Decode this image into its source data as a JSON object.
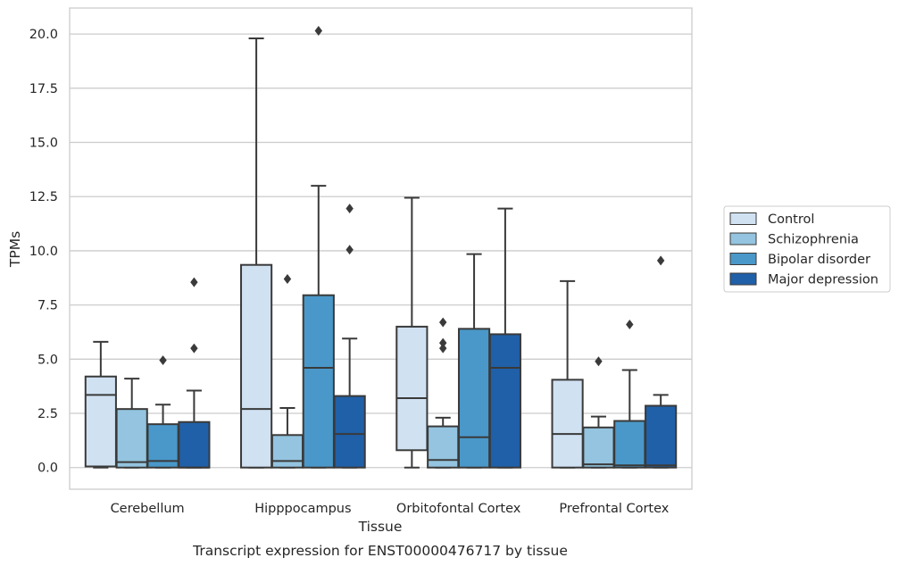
{
  "chart_data": {
    "type": "box",
    "ylabel": "TPMs",
    "xlabel": "Tissue",
    "caption": "Transcript expression for ENST00000476717 by tissue",
    "ylim": [
      -1,
      21.2
    ],
    "yticks": [
      0.0,
      2.5,
      5.0,
      7.5,
      10.0,
      12.5,
      15.0,
      17.5,
      20.0
    ],
    "ytick_labels": [
      "0.0",
      "2.5",
      "5.0",
      "7.5",
      "10.0",
      "12.5",
      "15.0",
      "17.5",
      "20.0"
    ],
    "grid": "horizontal",
    "legend_position": "right",
    "categories": [
      "Cerebellum",
      "Hipppocampus",
      "Orbitofontal Cortex",
      "Prefrontal Cortex"
    ],
    "series": [
      {
        "name": "Control",
        "color": "#d0e1f2",
        "boxes": [
          {
            "whislo": 0.0,
            "q1": 0.05,
            "med": 3.35,
            "q3": 4.2,
            "whishi": 5.8,
            "fliers": []
          },
          {
            "whislo": 0.0,
            "q1": 0.0,
            "med": 2.7,
            "q3": 9.35,
            "whishi": 19.8,
            "fliers": []
          },
          {
            "whislo": 0.0,
            "q1": 0.8,
            "med": 3.2,
            "q3": 6.5,
            "whishi": 12.45,
            "fliers": []
          },
          {
            "whislo": 0.0,
            "q1": 0.0,
            "med": 1.55,
            "q3": 4.05,
            "whishi": 8.6,
            "fliers": []
          }
        ]
      },
      {
        "name": "Schizophrenia",
        "color": "#94c4df",
        "boxes": [
          {
            "whislo": 0.0,
            "q1": 0.0,
            "med": 0.25,
            "q3": 2.7,
            "whishi": 4.1,
            "fliers": []
          },
          {
            "whislo": 0.0,
            "q1": 0.0,
            "med": 0.3,
            "q3": 1.5,
            "whishi": 2.75,
            "fliers": [
              8.7
            ]
          },
          {
            "whislo": 0.0,
            "q1": 0.0,
            "med": 0.35,
            "q3": 1.9,
            "whishi": 2.3,
            "fliers": [
              5.5,
              5.75,
              6.7
            ]
          },
          {
            "whislo": 0.0,
            "q1": 0.0,
            "med": 0.15,
            "q3": 1.85,
            "whishi": 2.35,
            "fliers": [
              4.9
            ]
          }
        ]
      },
      {
        "name": "Bipolar disorder",
        "color": "#4a98c9",
        "boxes": [
          {
            "whislo": 0.0,
            "q1": 0.0,
            "med": 0.3,
            "q3": 2.0,
            "whishi": 2.9,
            "fliers": [
              4.95
            ]
          },
          {
            "whislo": 0.0,
            "q1": 0.0,
            "med": 4.6,
            "q3": 7.95,
            "whishi": 13.0,
            "fliers": [
              20.15
            ]
          },
          {
            "whislo": 0.0,
            "q1": 0.0,
            "med": 1.4,
            "q3": 6.4,
            "whishi": 9.85,
            "fliers": []
          },
          {
            "whislo": 0.0,
            "q1": 0.0,
            "med": 0.1,
            "q3": 2.15,
            "whishi": 4.5,
            "fliers": [
              6.6
            ]
          }
        ]
      },
      {
        "name": "Major depression",
        "color": "#2060a8",
        "boxes": [
          {
            "whislo": 0.0,
            "q1": 0.0,
            "med": 0.0,
            "q3": 2.1,
            "whishi": 3.55,
            "fliers": [
              5.5,
              8.55
            ]
          },
          {
            "whislo": 0.0,
            "q1": 0.0,
            "med": 1.55,
            "q3": 3.3,
            "whishi": 5.95,
            "fliers": [
              10.05,
              11.95
            ]
          },
          {
            "whislo": 0.0,
            "q1": 0.0,
            "med": 4.6,
            "q3": 6.15,
            "whishi": 11.95,
            "fliers": []
          },
          {
            "whislo": 0.0,
            "q1": 0.0,
            "med": 0.1,
            "q3": 2.85,
            "whishi": 3.35,
            "fliers": [
              9.55
            ]
          }
        ]
      }
    ]
  }
}
